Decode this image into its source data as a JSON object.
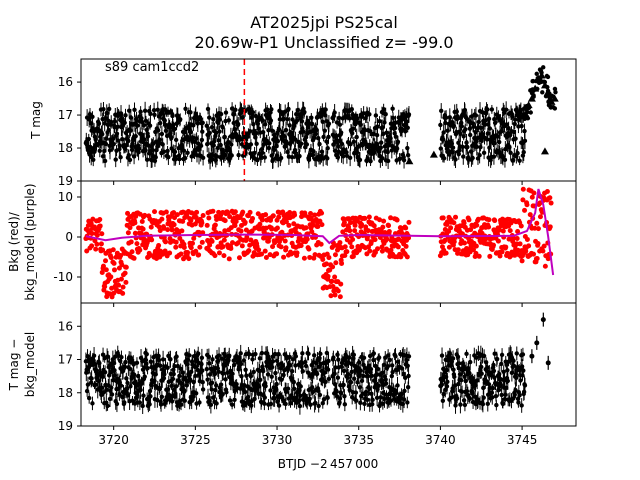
{
  "title": {
    "line1": "AT2025jpi  PS25cal",
    "line2": "20.69w-P1 Unclassified z= -99.0"
  },
  "xlabel": "BTJD −2 457 000",
  "colors": {
    "data": "#000000",
    "bkg": "#ff0000",
    "bkg_model": "#bf00bf",
    "marker": "#ff0000"
  },
  "chart_data": [
    {
      "type": "scatter",
      "name": "top-panel",
      "ylabel": "T mag",
      "annotation": "s89 cam1ccd2",
      "xlim": [
        3718.0,
        3748.3
      ],
      "ylim": [
        19.0,
        15.3
      ],
      "inverted_y": true,
      "xticks": [
        3720,
        3725,
        3730,
        3735,
        3740,
        3745
      ],
      "yticks": [
        16,
        17,
        18,
        19
      ],
      "vline_x": 3728.0,
      "segments": [
        {
          "x": [
            3718.3,
            3725.5
          ],
          "y_center": 17.6,
          "y_spread": 0.8
        },
        {
          "x": [
            3725.7,
            3733.2
          ],
          "y_center": 17.6,
          "y_spread": 0.8
        },
        {
          "x": [
            3733.4,
            3738.1
          ],
          "y_center": 17.6,
          "y_spread": 0.8
        },
        {
          "x": [
            3740.0,
            3745.2
          ],
          "y_center": 17.6,
          "y_spread": 0.8
        }
      ],
      "rise_points": [
        [
          3745.2,
          17.0
        ],
        [
          3745.4,
          16.7
        ],
        [
          3745.6,
          16.5
        ],
        [
          3745.8,
          16.2
        ],
        [
          3746.0,
          15.9
        ],
        [
          3746.2,
          15.8
        ],
        [
          3746.4,
          16.1
        ],
        [
          3746.6,
          16.3
        ],
        [
          3746.8,
          16.6
        ],
        [
          3747.0,
          16.5
        ]
      ],
      "outliers": [
        [
          3723.5,
          16.9
        ],
        [
          3738.1,
          18.4
        ],
        [
          3746.4,
          18.1
        ],
        [
          3739.6,
          18.2
        ]
      ]
    },
    {
      "type": "scatter",
      "name": "middle-panel",
      "ylabel_lines": [
        "Bkg (red)/",
        "bkg_model (purple)"
      ],
      "xlim": [
        3718.0,
        3748.3
      ],
      "ylim": [
        -16.5,
        14.0
      ],
      "xticks": [
        3720,
        3725,
        3730,
        3735,
        3740,
        3745
      ],
      "yticks": [
        -10,
        0,
        10
      ],
      "bkg_segments": [
        {
          "x": [
            3718.3,
            3719.3
          ],
          "y_center": 0.5,
          "y_spread": 4
        },
        {
          "x": [
            3719.3,
            3720.8
          ],
          "y_center": -9,
          "y_spread": 6
        },
        {
          "x": [
            3720.8,
            3725.5
          ],
          "y_center": 0.5,
          "y_spread": 6
        },
        {
          "x": [
            3725.7,
            3732.8
          ],
          "y_center": 0.5,
          "y_spread": 6
        },
        {
          "x": [
            3732.8,
            3734.0
          ],
          "y_center": -8,
          "y_spread": 7
        },
        {
          "x": [
            3734.0,
            3738.1
          ],
          "y_center": 0,
          "y_spread": 5
        },
        {
          "x": [
            3740.0,
            3745.0
          ],
          "y_center": 0,
          "y_spread": 5
        },
        {
          "x": [
            3745.0,
            3746.8
          ],
          "y_center": 2,
          "y_spread": 10
        }
      ],
      "model_line": {
        "x": [
          3718.3,
          3719.5,
          3720.5,
          3722,
          3725,
          3728,
          3731,
          3732.8,
          3733.2,
          3733.8,
          3735,
          3738.1,
          3740.0,
          3744.5,
          3745.3,
          3745.8,
          3746.0,
          3746.3,
          3746.6,
          3746.9
        ],
        "y": [
          0.2,
          -0.8,
          -0.2,
          0.3,
          0.5,
          0.6,
          0.5,
          0.2,
          -1.5,
          0.3,
          0.5,
          0.3,
          0.2,
          0.3,
          1.5,
          6.0,
          12.0,
          8.0,
          0.0,
          -9.5
        ]
      }
    },
    {
      "type": "scatter",
      "name": "bottom-panel",
      "ylabel_lines": [
        "T mag −",
        "bkg_model"
      ],
      "xlim": [
        3718.0,
        3748.3
      ],
      "ylim": [
        19.0,
        15.3
      ],
      "inverted_y": true,
      "xticks": [
        3720,
        3725,
        3730,
        3735,
        3740,
        3745
      ],
      "xticklabels": [
        "3720",
        "3725",
        "3730",
        "3735",
        "3740",
        "3745"
      ],
      "yticks": [
        16,
        17,
        18,
        19
      ],
      "segments": [
        {
          "x": [
            3718.3,
            3725.5
          ],
          "y_center": 17.6,
          "y_spread": 0.8
        },
        {
          "x": [
            3725.7,
            3733.2
          ],
          "y_center": 17.6,
          "y_spread": 0.8
        },
        {
          "x": [
            3733.4,
            3738.1
          ],
          "y_center": 17.6,
          "y_spread": 0.8
        },
        {
          "x": [
            3740.0,
            3745.2
          ],
          "y_center": 17.6,
          "y_spread": 0.8
        }
      ],
      "highlight_points": [
        [
          3745.6,
          16.9
        ],
        [
          3745.9,
          16.5
        ],
        [
          3746.3,
          15.8
        ],
        [
          3746.6,
          17.1
        ]
      ]
    }
  ]
}
